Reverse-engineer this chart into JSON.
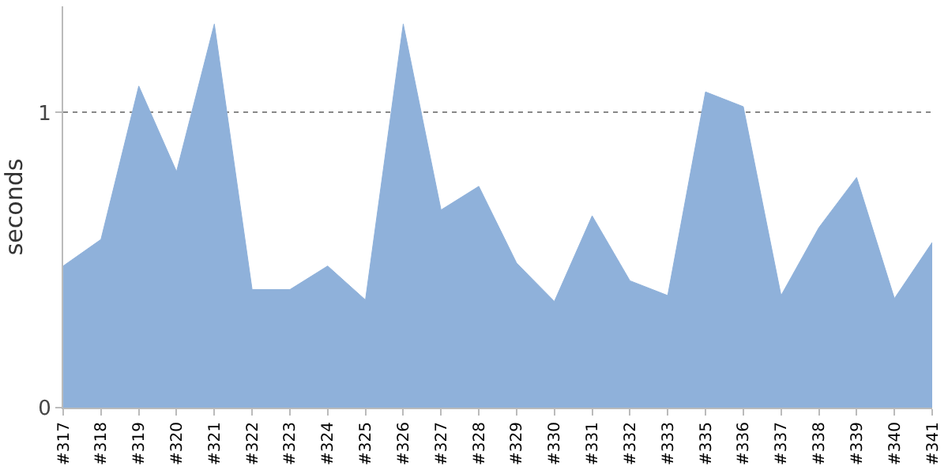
{
  "chart_data": {
    "type": "area",
    "ylabel": "seconds",
    "categories": [
      "#317",
      "#318",
      "#319",
      "#320",
      "#321",
      "#322",
      "#323",
      "#324",
      "#325",
      "#326",
      "#327",
      "#328",
      "#329",
      "#330",
      "#331",
      "#332",
      "#333",
      "#335",
      "#336",
      "#337",
      "#338",
      "#339",
      "#340",
      "#341"
    ],
    "series": [
      {
        "color": "#8fb1da",
        "values": [
          0.48,
          0.57,
          1.09,
          0.8,
          1.3,
          0.4,
          0.4,
          0.48,
          0.365,
          1.3,
          0.67,
          0.75,
          0.49,
          0.36,
          0.65,
          0.43,
          0.38,
          1.07,
          1.02,
          0.38,
          0.61,
          0.78,
          0.37,
          0.56
        ]
      }
    ],
    "ylim": [
      0,
      1.36
    ],
    "yticks": [
      0,
      1
    ],
    "grid": "y"
  }
}
